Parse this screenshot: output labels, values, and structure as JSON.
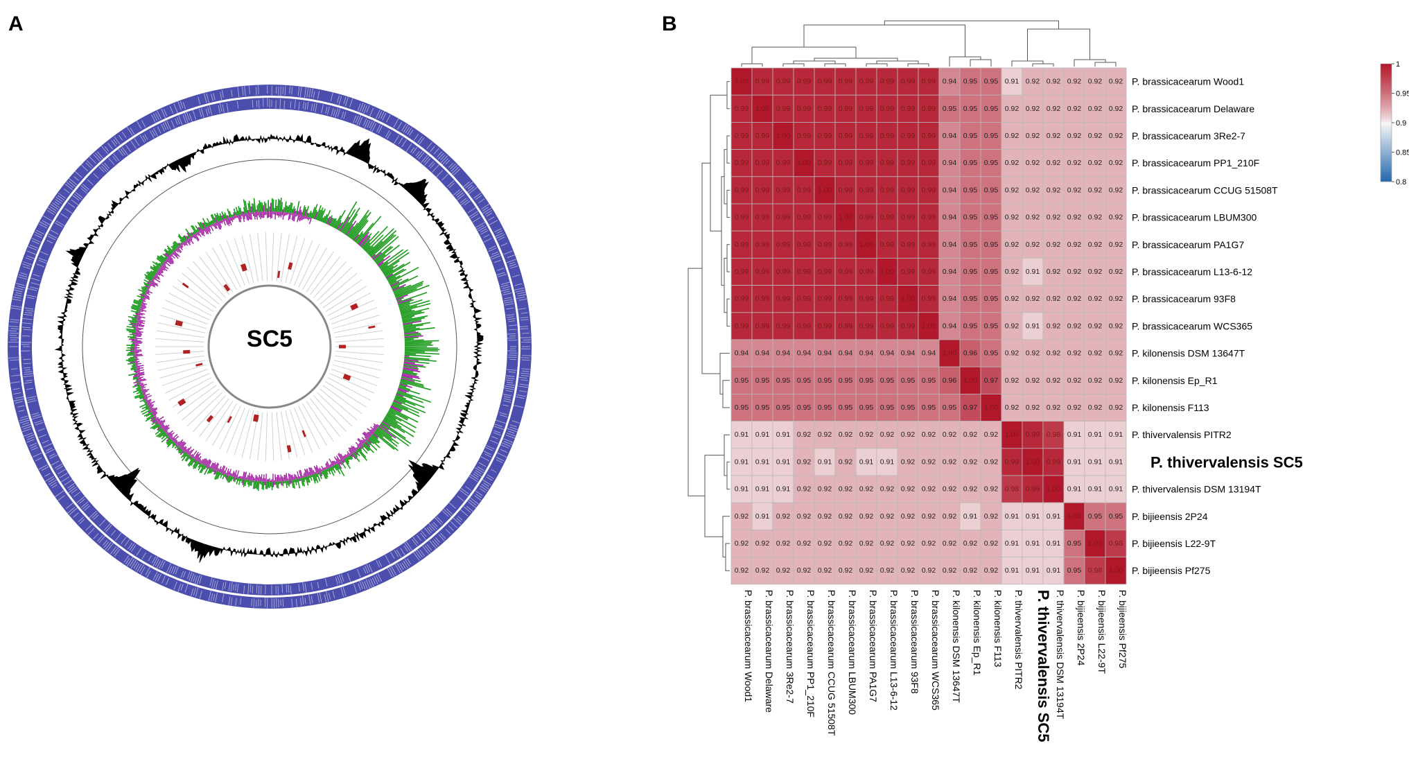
{
  "panels": {
    "a_label": "A",
    "b_label": "B"
  },
  "panel_a": {
    "center_label": "SC5",
    "colors": {
      "cds": "#2b2f9e",
      "gc_content": "#000000",
      "gc_skew_pos": "#1a9a1a",
      "gc_skew_neg": "#a020a0",
      "features": "#b22222",
      "rings": "#888888"
    }
  },
  "chart_data": {
    "type": "heatmap",
    "title": "",
    "taxa": [
      "P. brassicacearum Wood1",
      "P. brassicacearum Delaware",
      "P. brassicacearum 3Re2-7",
      "P. brassicacearum PP1_210F",
      "P. brassicacearum CCUG 51508T",
      "P. brassicacearum LBUM300",
      "P. brassicacearum PA1G7",
      "P. brassicacearum L13-6-12",
      "P. brassicacearum 93F8",
      "P. brassicacearum WCS365",
      "P. kilonensis DSM 13647T",
      "P. kilonensis Ep_R1",
      "P. kilonensis F113",
      "P. thivervalensis PITR2",
      "P. thivervalensis SC5",
      "P. thivervalensis DSM 13194T",
      "P. bijieensis 2P24",
      "P. bijieensis L22-9T",
      "P. bijieensis Pf275"
    ],
    "highlight_index": 14,
    "values": [
      [
        1.0,
        0.99,
        0.99,
        0.99,
        0.99,
        0.99,
        0.99,
        0.99,
        0.99,
        0.99,
        0.94,
        0.95,
        0.95,
        0.91,
        0.92,
        0.92,
        0.92,
        0.92,
        0.92
      ],
      [
        0.99,
        1.0,
        0.99,
        0.99,
        0.99,
        0.99,
        0.99,
        0.99,
        0.99,
        0.99,
        0.95,
        0.95,
        0.95,
        0.92,
        0.92,
        0.92,
        0.92,
        0.92,
        0.92
      ],
      [
        0.99,
        0.99,
        1.0,
        0.99,
        0.99,
        0.99,
        0.99,
        0.99,
        0.99,
        0.99,
        0.94,
        0.95,
        0.95,
        0.92,
        0.92,
        0.92,
        0.92,
        0.92,
        0.92
      ],
      [
        0.99,
        0.99,
        0.99,
        1.0,
        0.99,
        0.99,
        0.99,
        0.99,
        0.99,
        0.99,
        0.94,
        0.95,
        0.95,
        0.92,
        0.92,
        0.92,
        0.92,
        0.92,
        0.92
      ],
      [
        0.99,
        0.99,
        0.99,
        0.99,
        1.0,
        0.99,
        0.99,
        0.99,
        0.99,
        0.99,
        0.94,
        0.95,
        0.95,
        0.92,
        0.92,
        0.92,
        0.92,
        0.92,
        0.92
      ],
      [
        0.99,
        0.99,
        0.99,
        0.99,
        0.99,
        1.0,
        0.99,
        0.99,
        0.99,
        0.99,
        0.94,
        0.95,
        0.95,
        0.92,
        0.92,
        0.92,
        0.92,
        0.92,
        0.92
      ],
      [
        0.99,
        0.99,
        0.99,
        0.99,
        0.99,
        0.99,
        1.0,
        0.99,
        0.99,
        0.99,
        0.94,
        0.95,
        0.95,
        0.92,
        0.92,
        0.92,
        0.92,
        0.92,
        0.92
      ],
      [
        0.99,
        0.99,
        0.99,
        0.99,
        0.99,
        0.99,
        0.99,
        1.0,
        0.99,
        0.99,
        0.94,
        0.95,
        0.95,
        0.92,
        0.91,
        0.92,
        0.92,
        0.92,
        0.92
      ],
      [
        0.99,
        0.99,
        0.99,
        0.99,
        0.99,
        0.99,
        0.99,
        0.99,
        1.0,
        0.99,
        0.94,
        0.95,
        0.95,
        0.92,
        0.92,
        0.92,
        0.92,
        0.92,
        0.92
      ],
      [
        0.99,
        0.99,
        0.99,
        0.99,
        0.99,
        0.99,
        0.99,
        0.99,
        0.99,
        1.0,
        0.94,
        0.95,
        0.95,
        0.92,
        0.91,
        0.92,
        0.92,
        0.92,
        0.92
      ],
      [
        0.94,
        0.94,
        0.94,
        0.94,
        0.94,
        0.94,
        0.94,
        0.94,
        0.94,
        0.94,
        1.0,
        0.96,
        0.95,
        0.92,
        0.92,
        0.92,
        0.92,
        0.92,
        0.92
      ],
      [
        0.95,
        0.95,
        0.95,
        0.95,
        0.95,
        0.95,
        0.95,
        0.95,
        0.95,
        0.95,
        0.96,
        1.0,
        0.97,
        0.92,
        0.92,
        0.92,
        0.92,
        0.92,
        0.92
      ],
      [
        0.95,
        0.95,
        0.95,
        0.95,
        0.95,
        0.95,
        0.95,
        0.95,
        0.95,
        0.95,
        0.95,
        0.97,
        1.0,
        0.92,
        0.92,
        0.92,
        0.92,
        0.92,
        0.92
      ],
      [
        0.91,
        0.91,
        0.91,
        0.92,
        0.92,
        0.92,
        0.92,
        0.92,
        0.92,
        0.92,
        0.92,
        0.92,
        0.92,
        1.0,
        0.99,
        0.98,
        0.91,
        0.91,
        0.91
      ],
      [
        0.91,
        0.91,
        0.91,
        0.92,
        0.91,
        0.92,
        0.91,
        0.91,
        0.92,
        0.92,
        0.92,
        0.92,
        0.92,
        0.99,
        1.0,
        0.99,
        0.91,
        0.91,
        0.91
      ],
      [
        0.91,
        0.91,
        0.91,
        0.92,
        0.92,
        0.92,
        0.92,
        0.92,
        0.92,
        0.92,
        0.92,
        0.92,
        0.92,
        0.98,
        0.99,
        1.0,
        0.91,
        0.91,
        0.91
      ],
      [
        0.92,
        0.91,
        0.92,
        0.92,
        0.92,
        0.92,
        0.92,
        0.92,
        0.92,
        0.92,
        0.92,
        0.91,
        0.92,
        0.91,
        0.91,
        0.91,
        1.0,
        0.95,
        0.95
      ],
      [
        0.92,
        0.92,
        0.92,
        0.92,
        0.92,
        0.92,
        0.92,
        0.92,
        0.92,
        0.92,
        0.92,
        0.92,
        0.92,
        0.91,
        0.91,
        0.91,
        0.95,
        1.0,
        0.98
      ],
      [
        0.92,
        0.92,
        0.92,
        0.92,
        0.92,
        0.92,
        0.92,
        0.92,
        0.92,
        0.92,
        0.92,
        0.92,
        0.92,
        0.91,
        0.91,
        0.91,
        0.95,
        0.98,
        1.0
      ]
    ],
    "colorbar": {
      "range": [
        0.8,
        1.0
      ],
      "ticks": [
        1,
        0.95,
        0.9,
        0.85,
        0.8
      ],
      "tick_labels": [
        "1",
        "0.95",
        "0.9",
        "0.85",
        "0.8"
      ]
    },
    "colors": {
      "high": "#b2182b",
      "mid": "#f7f7f7",
      "low": "#2166ac"
    }
  }
}
